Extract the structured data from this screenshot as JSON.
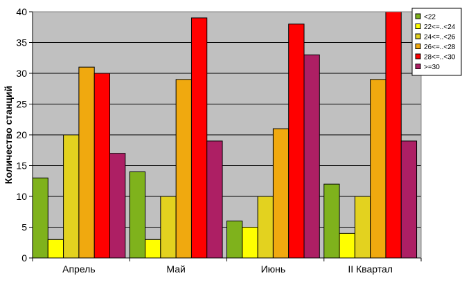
{
  "chart_data": {
    "type": "bar",
    "title": "",
    "xlabel": "",
    "ylabel": "Количество станций",
    "ylim": [
      0,
      40
    ],
    "yticks": [
      0,
      5,
      10,
      15,
      20,
      25,
      30,
      35,
      40
    ],
    "grid": true,
    "legend_position": "top-right",
    "plot_background": "#c0c0c0",
    "categories": [
      "Апрель",
      "Май",
      "Июнь",
      "II Квартал"
    ],
    "series": [
      {
        "name": "<22",
        "color": "#7fb21c",
        "values": [
          13,
          14,
          6,
          12
        ]
      },
      {
        "name": "22<=..<24",
        "color": "#ffff00",
        "values": [
          3,
          3,
          5,
          4
        ]
      },
      {
        "name": "24<=..<26",
        "color": "#e3d21f",
        "values": [
          20,
          10,
          10,
          10
        ]
      },
      {
        "name": "26<=..<28",
        "color": "#f0a90f",
        "values": [
          31,
          29,
          21,
          29
        ]
      },
      {
        "name": "28<=..<30",
        "color": "#ff0000",
        "values": [
          30,
          39,
          38,
          40
        ]
      },
      {
        "name": ">=30",
        "color": "#ad1f64",
        "values": [
          17,
          19,
          33,
          19
        ]
      }
    ]
  }
}
